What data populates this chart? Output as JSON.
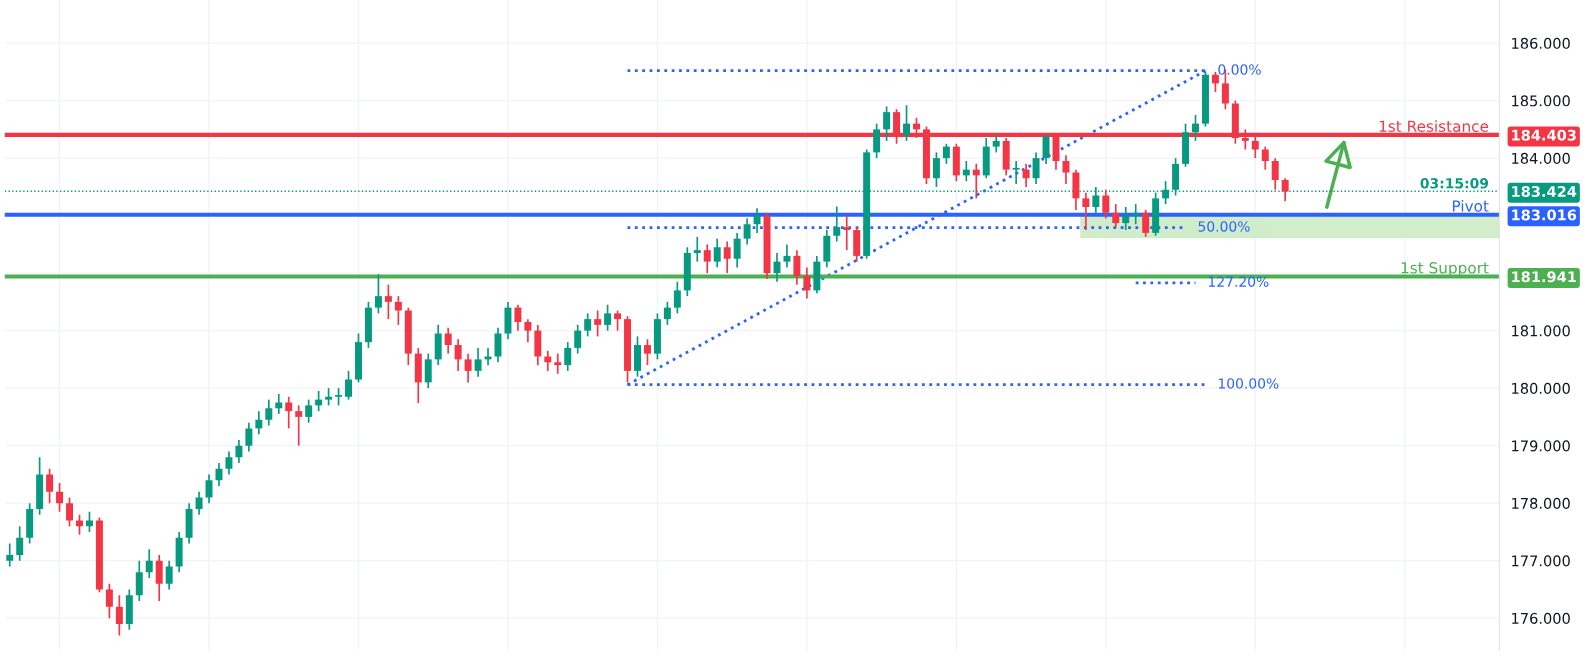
{
  "chart_data": {
    "type": "candlestick",
    "categories": [
      null,
      null,
      null,
      null,
      null,
      null,
      null,
      null,
      null,
      null,
      null,
      null,
      null,
      null,
      null,
      null,
      null,
      null,
      null,
      null,
      null,
      null,
      null,
      null,
      null,
      null,
      null,
      null,
      null,
      null,
      null,
      null,
      null,
      null,
      null,
      null,
      null,
      null,
      null,
      null,
      null,
      null,
      null,
      null,
      null,
      null,
      null,
      null,
      null,
      null,
      null,
      null,
      null,
      null,
      null,
      null,
      null,
      null,
      null,
      null,
      null,
      null,
      null,
      null,
      null,
      null,
      null,
      null,
      null,
      null,
      null,
      null,
      null,
      null,
      null,
      null,
      null,
      null,
      null,
      null,
      null,
      null,
      null,
      null,
      null,
      null,
      null,
      null,
      null,
      null,
      null,
      null,
      null,
      null,
      null,
      null,
      null,
      null,
      null,
      null,
      null,
      null,
      null,
      null,
      null,
      null,
      null,
      null,
      null,
      null,
      null,
      null,
      null,
      null,
      null,
      null,
      null,
      null,
      null,
      null,
      null,
      null,
      null,
      null,
      null,
      null,
      null,
      null,
      null,
      null,
      null,
      null,
      null,
      null,
      null,
      null,
      null,
      null,
      null,
      null,
      null,
      null,
      null,
      null,
      null,
      null,
      null,
      null,
      null,
      null
    ],
    "ohlc": [
      [
        177.0,
        177.3,
        176.9,
        177.1
      ],
      [
        177.1,
        177.6,
        177.0,
        177.4
      ],
      [
        177.4,
        178.0,
        177.3,
        177.9
      ],
      [
        177.9,
        178.8,
        177.8,
        178.5
      ],
      [
        178.5,
        178.6,
        178.0,
        178.2
      ],
      [
        178.2,
        178.35,
        177.85,
        178.0
      ],
      [
        178.0,
        178.1,
        177.6,
        177.7
      ],
      [
        177.7,
        177.8,
        177.45,
        177.6
      ],
      [
        177.6,
        177.85,
        177.5,
        177.7
      ],
      [
        177.7,
        177.75,
        176.45,
        176.5
      ],
      [
        176.5,
        176.6,
        176.0,
        176.2
      ],
      [
        176.2,
        176.4,
        175.7,
        175.9
      ],
      [
        175.9,
        176.5,
        175.8,
        176.4
      ],
      [
        176.4,
        177.0,
        176.3,
        176.8
      ],
      [
        176.8,
        177.2,
        176.7,
        177.0
      ],
      [
        177.0,
        177.1,
        176.3,
        176.6
      ],
      [
        176.6,
        177.0,
        176.5,
        176.9
      ],
      [
        176.9,
        177.5,
        176.8,
        177.4
      ],
      [
        177.4,
        178.0,
        177.3,
        177.9
      ],
      [
        177.9,
        178.2,
        177.8,
        178.1
      ],
      [
        178.1,
        178.5,
        178.0,
        178.4
      ],
      [
        178.4,
        178.7,
        178.3,
        178.6
      ],
      [
        178.6,
        178.9,
        178.5,
        178.8
      ],
      [
        178.8,
        179.1,
        178.7,
        179.0
      ],
      [
        179.0,
        179.4,
        178.9,
        179.3
      ],
      [
        179.3,
        179.6,
        179.2,
        179.45
      ],
      [
        179.45,
        179.8,
        179.35,
        179.65
      ],
      [
        179.65,
        179.9,
        179.55,
        179.75
      ],
      [
        179.75,
        179.85,
        179.3,
        179.6
      ],
      [
        179.6,
        179.7,
        179.0,
        179.5
      ],
      [
        179.5,
        179.8,
        179.4,
        179.7
      ],
      [
        179.7,
        179.95,
        179.6,
        179.8
      ],
      [
        179.8,
        180.0,
        179.7,
        179.85
      ],
      [
        179.85,
        180.0,
        179.7,
        179.85
      ],
      [
        179.85,
        180.3,
        179.8,
        180.15
      ],
      [
        180.15,
        180.95,
        180.1,
        180.8
      ],
      [
        180.8,
        181.5,
        180.7,
        181.4
      ],
      [
        181.4,
        181.98,
        181.3,
        181.6
      ],
      [
        181.6,
        181.8,
        181.2,
        181.5
      ],
      [
        181.5,
        181.6,
        181.1,
        181.35
      ],
      [
        181.35,
        181.4,
        180.4,
        180.6
      ],
      [
        180.6,
        180.7,
        179.74,
        180.1
      ],
      [
        180.1,
        180.6,
        180.0,
        180.5
      ],
      [
        180.5,
        181.1,
        180.4,
        180.95
      ],
      [
        180.95,
        181.05,
        180.6,
        180.75
      ],
      [
        180.75,
        180.85,
        180.3,
        180.5
      ],
      [
        180.5,
        180.6,
        180.1,
        180.3
      ],
      [
        180.3,
        180.7,
        180.2,
        180.5
      ],
      [
        180.5,
        180.7,
        180.4,
        180.55
      ],
      [
        180.55,
        181.05,
        180.45,
        180.95
      ],
      [
        180.95,
        181.5,
        180.85,
        181.4
      ],
      [
        181.4,
        181.45,
        181.0,
        181.15
      ],
      [
        181.15,
        181.2,
        180.8,
        181.0
      ],
      [
        181.0,
        181.1,
        180.4,
        180.55
      ],
      [
        180.55,
        180.65,
        180.3,
        180.45
      ],
      [
        180.45,
        180.6,
        180.25,
        180.4
      ],
      [
        180.4,
        180.8,
        180.3,
        180.7
      ],
      [
        180.7,
        181.1,
        180.6,
        181.0
      ],
      [
        181.0,
        181.3,
        180.9,
        181.2
      ],
      [
        181.2,
        181.35,
        180.9,
        181.1
      ],
      [
        181.1,
        181.45,
        181.0,
        181.3
      ],
      [
        181.3,
        181.35,
        181.0,
        181.2
      ],
      [
        181.2,
        181.25,
        180.1,
        180.3
      ],
      [
        180.3,
        180.9,
        180.2,
        180.75
      ],
      [
        180.75,
        180.85,
        180.4,
        180.6
      ],
      [
        180.6,
        181.3,
        180.5,
        181.2
      ],
      [
        181.2,
        181.5,
        181.1,
        181.4
      ],
      [
        181.4,
        181.85,
        181.3,
        181.7
      ],
      [
        181.7,
        182.45,
        181.6,
        182.35
      ],
      [
        182.35,
        182.63,
        182.2,
        182.4
      ],
      [
        182.4,
        182.5,
        182.0,
        182.2
      ],
      [
        182.2,
        182.6,
        182.1,
        182.45
      ],
      [
        182.45,
        182.55,
        182.0,
        182.25
      ],
      [
        182.25,
        182.7,
        182.1,
        182.6
      ],
      [
        182.6,
        182.95,
        182.5,
        182.85
      ],
      [
        182.85,
        183.13,
        182.7,
        183.0
      ],
      [
        183.0,
        183.05,
        181.9,
        182.0
      ],
      [
        182.0,
        182.35,
        181.85,
        182.2
      ],
      [
        182.2,
        182.5,
        182.1,
        182.3
      ],
      [
        182.3,
        182.4,
        181.8,
        181.95
      ],
      [
        181.95,
        182.1,
        181.56,
        181.7
      ],
      [
        181.7,
        182.3,
        181.65,
        182.2
      ],
      [
        182.2,
        182.75,
        182.1,
        182.65
      ],
      [
        182.65,
        183.16,
        182.55,
        182.8
      ],
      [
        182.8,
        183.0,
        182.4,
        182.75
      ],
      [
        182.75,
        182.8,
        182.2,
        182.3
      ],
      [
        182.3,
        184.15,
        182.25,
        184.1
      ],
      [
        184.1,
        184.6,
        184.0,
        184.5
      ],
      [
        184.5,
        184.9,
        184.3,
        184.8
      ],
      [
        184.8,
        184.85,
        184.25,
        184.4
      ],
      [
        184.4,
        184.92,
        184.3,
        184.6
      ],
      [
        184.6,
        184.7,
        184.35,
        184.5
      ],
      [
        184.5,
        184.55,
        183.55,
        183.65
      ],
      [
        183.65,
        184.1,
        183.5,
        184.0
      ],
      [
        184.0,
        184.25,
        183.9,
        184.2
      ],
      [
        184.2,
        184.25,
        183.6,
        183.7
      ],
      [
        183.7,
        183.95,
        183.6,
        183.8
      ],
      [
        183.8,
        183.9,
        183.3,
        183.7
      ],
      [
        183.7,
        184.35,
        183.65,
        184.2
      ],
      [
        184.2,
        184.4,
        184.1,
        184.3
      ],
      [
        184.3,
        184.35,
        183.7,
        183.8
      ],
      [
        183.8,
        183.95,
        183.55,
        183.8
      ],
      [
        183.8,
        183.9,
        183.5,
        183.65
      ],
      [
        183.65,
        184.1,
        183.55,
        184.0
      ],
      [
        184.0,
        184.4,
        183.9,
        184.38
      ],
      [
        184.38,
        184.42,
        183.8,
        183.95
      ],
      [
        183.95,
        184.05,
        183.55,
        183.75
      ],
      [
        183.75,
        183.8,
        183.1,
        183.3
      ],
      [
        183.3,
        183.4,
        182.75,
        183.15
      ],
      [
        183.15,
        183.5,
        183.05,
        183.35
      ],
      [
        183.35,
        183.45,
        182.95,
        183.05
      ],
      [
        183.05,
        183.2,
        182.8,
        182.87
      ],
      [
        182.87,
        183.15,
        182.75,
        183.0
      ],
      [
        183.0,
        183.2,
        182.85,
        183.05
      ],
      [
        183.05,
        183.1,
        182.63,
        182.7
      ],
      [
        182.7,
        183.4,
        182.65,
        183.3
      ],
      [
        183.3,
        183.6,
        183.2,
        183.45
      ],
      [
        183.45,
        184.0,
        183.35,
        183.9
      ],
      [
        183.9,
        184.6,
        183.85,
        184.45
      ],
      [
        184.45,
        184.75,
        184.3,
        184.6
      ],
      [
        184.6,
        185.5,
        184.55,
        185.45
      ],
      [
        185.45,
        185.5,
        185.15,
        185.3
      ],
      [
        185.3,
        185.54,
        184.85,
        184.95
      ],
      [
        184.95,
        185.0,
        184.25,
        184.35
      ],
      [
        184.35,
        184.5,
        184.15,
        184.3
      ],
      [
        184.3,
        184.4,
        184.0,
        184.15
      ],
      [
        184.15,
        184.2,
        183.8,
        183.95
      ],
      [
        183.95,
        184.0,
        183.45,
        183.62
      ],
      [
        183.62,
        183.65,
        183.25,
        183.42
      ],
      null,
      null,
      null,
      null,
      null,
      null,
      null,
      null,
      null,
      null,
      null,
      null,
      null,
      null,
      null,
      null,
      null,
      null,
      null,
      null,
      null
    ],
    "series": [
      {
        "type": "line",
        "name": "0.00%",
        "color": "#2962ff",
        "line_style": "dotted",
        "values": [
          null,
          null,
          null,
          null,
          null,
          null,
          null,
          null,
          null,
          null,
          null,
          null,
          null,
          null,
          null,
          null,
          null,
          null,
          null,
          null,
          null,
          null,
          null,
          null,
          null,
          null,
          null,
          null,
          null,
          null,
          null,
          null,
          null,
          null,
          null,
          null,
          null,
          null,
          null,
          null,
          null,
          null,
          null,
          null,
          null,
          null,
          null,
          null,
          null,
          null,
          null,
          null,
          null,
          null,
          null,
          null,
          null,
          null,
          null,
          null,
          null,
          null,
          185.52,
          null,
          null,
          null,
          null,
          null,
          null,
          null,
          null,
          null,
          null,
          null,
          null,
          null,
          null,
          null,
          null,
          null,
          null,
          null,
          null,
          null,
          null,
          null,
          null,
          null,
          null,
          null,
          null,
          null,
          null,
          null,
          null,
          null,
          null,
          null,
          null,
          null,
          null,
          null,
          null,
          null,
          null,
          null,
          null,
          null,
          null,
          null,
          null,
          null,
          null,
          null,
          null,
          null,
          null,
          null,
          null,
          null,
          185.52,
          null,
          null,
          null,
          null,
          null,
          null,
          null,
          null,
          null,
          null,
          null,
          null,
          null,
          null,
          null,
          null,
          null,
          null,
          null,
          null,
          null,
          null,
          null,
          null,
          null,
          null,
          null,
          null,
          null
        ]
      },
      {
        "type": "line",
        "name": "50.00%",
        "color": "#2962ff",
        "line_style": "dotted",
        "values": [
          null,
          null,
          null,
          null,
          null,
          null,
          null,
          null,
          null,
          null,
          null,
          null,
          null,
          null,
          null,
          null,
          null,
          null,
          null,
          null,
          null,
          null,
          null,
          null,
          null,
          null,
          null,
          null,
          null,
          null,
          null,
          null,
          null,
          null,
          null,
          null,
          null,
          null,
          null,
          null,
          null,
          null,
          null,
          null,
          null,
          null,
          null,
          null,
          null,
          null,
          null,
          null,
          null,
          null,
          null,
          null,
          null,
          null,
          null,
          null,
          null,
          null,
          182.79,
          null,
          null,
          null,
          null,
          null,
          null,
          null,
          null,
          null,
          null,
          null,
          null,
          null,
          null,
          null,
          null,
          null,
          null,
          null,
          null,
          null,
          null,
          null,
          null,
          null,
          null,
          null,
          null,
          null,
          null,
          null,
          null,
          null,
          null,
          null,
          null,
          null,
          null,
          null,
          null,
          null,
          null,
          null,
          null,
          null,
          null,
          null,
          null,
          null,
          null,
          null,
          null,
          null,
          null,
          null,
          182.79,
          null,
          null,
          null,
          null,
          null,
          null,
          null,
          null,
          null,
          null,
          null,
          null,
          null,
          null,
          null,
          null,
          null,
          null,
          null,
          null,
          null,
          null,
          null,
          null,
          null,
          null,
          null,
          null,
          null,
          null,
          null
        ]
      },
      {
        "type": "line",
        "name": "100.00%",
        "color": "#2962ff",
        "line_style": "dotted",
        "values": [
          null,
          null,
          null,
          null,
          null,
          null,
          null,
          null,
          null,
          null,
          null,
          null,
          null,
          null,
          null,
          null,
          null,
          null,
          null,
          null,
          null,
          null,
          null,
          null,
          null,
          null,
          null,
          null,
          null,
          null,
          null,
          null,
          null,
          null,
          null,
          null,
          null,
          null,
          null,
          null,
          null,
          null,
          null,
          null,
          null,
          null,
          null,
          null,
          null,
          null,
          null,
          null,
          null,
          null,
          null,
          null,
          null,
          null,
          null,
          null,
          null,
          null,
          180.06,
          null,
          null,
          null,
          null,
          null,
          null,
          null,
          null,
          null,
          null,
          null,
          null,
          null,
          null,
          null,
          null,
          null,
          null,
          null,
          null,
          null,
          null,
          null,
          null,
          null,
          null,
          null,
          null,
          null,
          null,
          null,
          null,
          null,
          null,
          null,
          null,
          null,
          null,
          null,
          null,
          null,
          null,
          null,
          null,
          null,
          null,
          null,
          null,
          null,
          null,
          null,
          null,
          null,
          null,
          null,
          null,
          null,
          180.06,
          null,
          null,
          null,
          null,
          null,
          null,
          null,
          null,
          null,
          null,
          null,
          null,
          null,
          null,
          null,
          null,
          null,
          null,
          null,
          null,
          null,
          null,
          null,
          null,
          null,
          null,
          null,
          null,
          null
        ]
      },
      {
        "type": "line",
        "name": "127.20%",
        "color": "#2962ff",
        "line_style": "dotted",
        "values": [
          null,
          null,
          null,
          null,
          null,
          null,
          null,
          null,
          null,
          null,
          null,
          null,
          null,
          null,
          null,
          null,
          null,
          null,
          null,
          null,
          null,
          null,
          null,
          null,
          null,
          null,
          null,
          null,
          null,
          null,
          null,
          null,
          null,
          null,
          null,
          null,
          null,
          null,
          null,
          null,
          null,
          null,
          null,
          null,
          null,
          null,
          null,
          null,
          null,
          null,
          null,
          null,
          null,
          null,
          null,
          null,
          null,
          null,
          null,
          null,
          null,
          null,
          null,
          null,
          null,
          null,
          null,
          null,
          null,
          null,
          null,
          null,
          null,
          null,
          null,
          null,
          null,
          null,
          null,
          null,
          null,
          null,
          null,
          null,
          null,
          null,
          null,
          null,
          null,
          null,
          null,
          null,
          null,
          null,
          null,
          null,
          null,
          null,
          null,
          null,
          null,
          null,
          null,
          null,
          null,
          null,
          null,
          null,
          null,
          null,
          null,
          null,
          null,
          181.83,
          null,
          null,
          null,
          null,
          null,
          181.83,
          null,
          null,
          null,
          null,
          null,
          null,
          null,
          null,
          null,
          null,
          null,
          null,
          null,
          null,
          null,
          null,
          null,
          null,
          null,
          null,
          null,
          null,
          null,
          null,
          null,
          null,
          null,
          null,
          null,
          null
        ]
      },
      {
        "type": "line",
        "color": "#2962ff",
        "line_style": "dotted",
        "values": [
          null,
          null,
          null,
          null,
          null,
          null,
          null,
          null,
          null,
          null,
          null,
          null,
          null,
          null,
          null,
          null,
          null,
          null,
          null,
          null,
          null,
          null,
          null,
          null,
          null,
          null,
          null,
          null,
          null,
          null,
          null,
          null,
          null,
          null,
          null,
          null,
          null,
          null,
          null,
          null,
          null,
          null,
          null,
          null,
          null,
          null,
          null,
          null,
          null,
          null,
          null,
          null,
          null,
          null,
          null,
          null,
          null,
          null,
          null,
          null,
          null,
          null,
          180.06,
          null,
          null,
          null,
          null,
          null,
          null,
          null,
          null,
          null,
          null,
          null,
          null,
          null,
          null,
          null,
          null,
          null,
          null,
          null,
          null,
          null,
          null,
          null,
          null,
          null,
          null,
          null,
          null,
          null,
          null,
          null,
          null,
          null,
          null,
          null,
          null,
          null,
          null,
          null,
          null,
          null,
          null,
          null,
          null,
          null,
          null,
          null,
          null,
          null,
          null,
          null,
          null,
          null,
          null,
          null,
          null,
          null,
          185.52,
          null,
          null,
          null,
          null,
          null,
          null,
          null,
          null,
          null,
          null,
          null,
          null,
          null,
          null,
          null,
          null,
          null,
          null,
          null,
          null,
          null,
          null,
          null,
          null,
          null,
          null,
          null,
          null,
          null
        ]
      }
    ],
    "ref_lines": [
      {
        "axis": "y",
        "value": 184.403,
        "label": "1st Resistance",
        "color": "#f23645",
        "line_style": "solid"
      },
      {
        "axis": "y",
        "value": 183.016,
        "label": "Pivot",
        "color": "#2962ff",
        "line_style": "solid"
      },
      {
        "axis": "y",
        "value": 181.941,
        "label": "1st Support",
        "color": "#4caf50",
        "line_style": "solid"
      },
      {
        "axis": "y",
        "value": 183.424,
        "color": "#089981",
        "line_style": "dotted"
      }
    ],
    "annotations": [
      "03:15:09"
    ],
    "bands": [
      {
        "axis": "y",
        "from": 182.62,
        "to": 183.016,
        "color": "#cdebc5"
      }
    ],
    "ylim": [
      175.45,
      186.75
    ],
    "yticks": [
      {
        "value": 176,
        "label": "176.000"
      },
      {
        "value": 177,
        "label": "177.000"
      },
      {
        "value": 178,
        "label": "178.000"
      },
      {
        "value": 179,
        "label": "179.000"
      },
      {
        "value": 180,
        "label": "180.000"
      },
      {
        "value": 181,
        "label": "181.000"
      },
      {
        "value": 181.941,
        "label": "181.941"
      },
      {
        "value": 182,
        "label": null
      },
      {
        "value": 183,
        "label": null
      },
      {
        "value": 183.016,
        "label": "183.016"
      },
      {
        "value": 183.424,
        "label": "183.424"
      },
      {
        "value": 184,
        "label": "184.000"
      },
      {
        "value": 184.403,
        "label": "184.403"
      },
      {
        "value": 185,
        "label": "185.000"
      },
      {
        "value": 186,
        "label": "186.000"
      }
    ],
    "grid": true,
    "tick_labels": "y"
  }
}
